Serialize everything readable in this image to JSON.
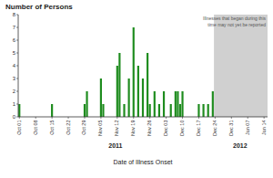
{
  "chart_data": {
    "type": "bar",
    "title": "Number of Persons",
    "xlabel": "Date of Illness Onset",
    "categories": [
      "Oct 01",
      null,
      null,
      null,
      null,
      null,
      null,
      "Oct 08",
      null,
      null,
      null,
      null,
      null,
      null,
      "Oct 15",
      null,
      null,
      null,
      null,
      null,
      null,
      "Oct 22",
      null,
      null,
      null,
      null,
      null,
      null,
      "Oct 29",
      null,
      null,
      null,
      null,
      null,
      null,
      "Nov 05",
      null,
      null,
      null,
      null,
      null,
      null,
      "Nov 12",
      null,
      null,
      null,
      null,
      null,
      null,
      "Nov 19",
      null,
      null,
      null,
      null,
      null,
      null,
      "Nov 26",
      null,
      null,
      null,
      null,
      null,
      null,
      "Dec 03",
      null,
      null,
      null,
      null,
      null,
      null,
      "Dec 10",
      null,
      null,
      null,
      null,
      null,
      null,
      "Dec 17",
      null,
      null,
      null,
      null,
      null,
      null,
      "Dec 24",
      null,
      null,
      null,
      null,
      null,
      null,
      "Dec 31",
      null,
      null,
      null,
      null,
      null,
      null,
      "Jan 07",
      null,
      null,
      null,
      null,
      null,
      null,
      "Jan 14",
      null
    ],
    "values": [
      1,
      0,
      0,
      0,
      0,
      0,
      0,
      0,
      0,
      0,
      0,
      0,
      0,
      0,
      1,
      0,
      0,
      0,
      0,
      0,
      0,
      0,
      0,
      0,
      0,
      0,
      0,
      0,
      1,
      2,
      0,
      0,
      0,
      0,
      0,
      3,
      1,
      0,
      0,
      0,
      0,
      0,
      4,
      5,
      0,
      1,
      0,
      3,
      0,
      7,
      0,
      4,
      0,
      3,
      0,
      5,
      1,
      0,
      2,
      0,
      1,
      0,
      2,
      0,
      0,
      1,
      0,
      2,
      2,
      1,
      2,
      0,
      0,
      0,
      0,
      0,
      0,
      1,
      0,
      1,
      0,
      1,
      0,
      2,
      0,
      0,
      0,
      0,
      0,
      0,
      0,
      0,
      0,
      0,
      0,
      0,
      0,
      0,
      0,
      0,
      0,
      0,
      0,
      0,
      0,
      0,
      0
    ],
    "color": "#1e8c1e",
    "ylim": [
      0,
      8
    ],
    "yticks": [
      0,
      1,
      2,
      3,
      4,
      5,
      6,
      7,
      8
    ],
    "grid": false,
    "year_labels": [
      "2011",
      "2012"
    ],
    "annotation": {
      "text": "Illnesses that began during this\ntime may not yet be reported",
      "from": "Dec 24",
      "color": "#d0d0d0"
    }
  }
}
